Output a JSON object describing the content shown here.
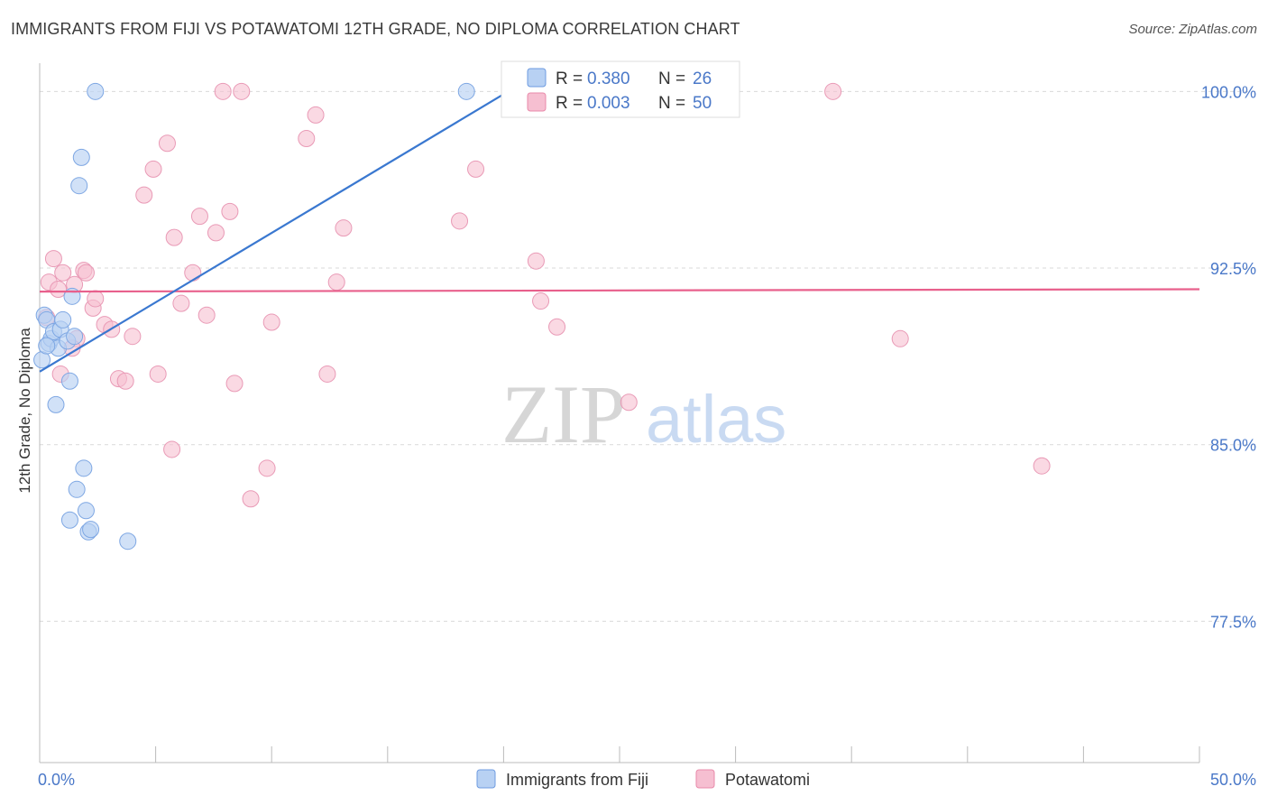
{
  "title": "IMMIGRANTS FROM FIJI VS POTAWATOMI 12TH GRADE, NO DIPLOMA CORRELATION CHART",
  "source": "Source: ZipAtlas.com",
  "watermark": {
    "zip": "ZIP",
    "atlas": "atlas"
  },
  "chart_data": {
    "type": "scatter",
    "title": "IMMIGRANTS FROM FIJI VS POTAWATOMI 12TH GRADE, NO DIPLOMA CORRELATION CHART",
    "xlabel": "",
    "ylabel": "12th Grade, No Diploma",
    "xlim": [
      0,
      50
    ],
    "ylim": [
      71.5,
      101.2
    ],
    "x_tick_labels": [
      "0.0%",
      "50.0%"
    ],
    "y_ticks": [
      77.5,
      85.0,
      92.5,
      100.0
    ],
    "y_tick_labels": [
      "77.5%",
      "85.0%",
      "92.5%",
      "100.0%"
    ],
    "grid": true,
    "legend_position": "top-center",
    "colors": {
      "fiji": "#4a86d8",
      "fiji_fill": "#b8d1f3",
      "potawatomi": "#e8608c",
      "potawatomi_fill": "#f6bfd1",
      "axis_text": "#4a78c8"
    },
    "legend": [
      {
        "r_label": "R = ",
        "r_value": "0.380",
        "n_label": "N = ",
        "n_value": "26"
      },
      {
        "r_label": "R = ",
        "r_value": "0.003",
        "n_label": "N = ",
        "n_value": "50"
      }
    ],
    "bottom_legend": [
      "Immigrants from Fiji",
      "Potawatomi"
    ],
    "series": [
      {
        "name": "Immigrants from Fiji",
        "trend": {
          "x": [
            0.0,
            20.2
          ],
          "y": [
            88.1,
            100.0
          ]
        },
        "x": [
          0.2,
          0.3,
          0.4,
          0.5,
          0.6,
          0.8,
          0.9,
          1.0,
          1.2,
          1.3,
          1.5,
          1.4,
          0.7,
          1.7,
          1.8,
          2.4,
          1.9,
          1.6,
          2.0,
          1.3,
          2.1,
          2.2,
          3.8,
          18.4,
          0.1,
          0.3
        ],
        "y": [
          90.5,
          90.3,
          89.3,
          89.5,
          89.8,
          89.1,
          89.9,
          90.3,
          89.4,
          87.7,
          89.6,
          91.3,
          86.7,
          96.0,
          97.2,
          100.0,
          84.0,
          83.1,
          82.2,
          81.8,
          81.3,
          81.4,
          80.9,
          100.0,
          88.6,
          89.2
        ]
      },
      {
        "name": "Potawatomi",
        "trend": {
          "x": [
            0.0,
            50.0
          ],
          "y": [
            91.5,
            91.6
          ]
        },
        "x": [
          0.4,
          0.6,
          0.8,
          1.0,
          1.5,
          1.9,
          2.0,
          2.3,
          2.8,
          3.4,
          3.7,
          4.0,
          4.5,
          4.9,
          5.5,
          5.8,
          5.7,
          6.6,
          6.9,
          7.2,
          7.6,
          8.2,
          8.4,
          8.7,
          9.1,
          9.8,
          10.0,
          11.5,
          11.9,
          12.8,
          13.1,
          12.4,
          18.1,
          18.8,
          21.4,
          21.6,
          22.3,
          25.4,
          34.2,
          37.1,
          43.2,
          0.3,
          0.9,
          1.6,
          2.4,
          3.1,
          5.1,
          6.1,
          7.9,
          1.4
        ],
        "y": [
          91.9,
          92.9,
          91.6,
          92.3,
          91.8,
          92.4,
          92.3,
          90.8,
          90.1,
          87.8,
          87.7,
          89.6,
          95.6,
          96.7,
          97.8,
          93.8,
          84.8,
          92.3,
          94.7,
          90.5,
          94.0,
          94.9,
          87.6,
          100.0,
          82.7,
          84.0,
          90.2,
          98.0,
          99.0,
          91.9,
          94.2,
          88.0,
          94.5,
          96.7,
          92.8,
          91.1,
          90.0,
          86.8,
          100.0,
          89.5,
          84.1,
          90.4,
          88.0,
          89.5,
          91.2,
          89.9,
          88.0,
          91.0,
          100.0,
          89.1
        ]
      }
    ]
  }
}
